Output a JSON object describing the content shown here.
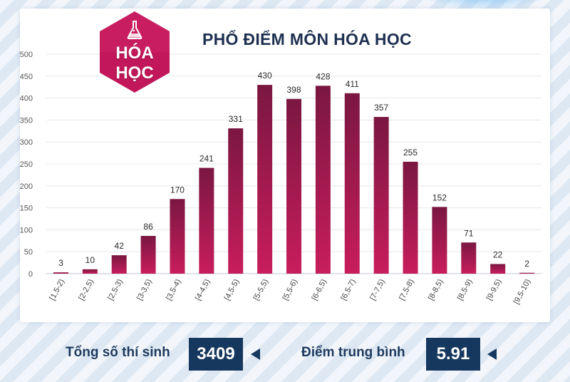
{
  "badge": {
    "line1": "HÓA",
    "line2": "HỌC"
  },
  "colors": {
    "bar_top": "#7a1740",
    "bar_bottom": "#c81d5c",
    "badge": "#c2185b",
    "navy": "#17385e"
  },
  "chart_data": {
    "type": "bar",
    "title": "PHỔ ĐIỂM MÔN HÓA HỌC",
    "categories": [
      "[1,5-2)",
      "[2-2,5)",
      "[2,5-3)",
      "[3-3,5)",
      "[3,5-4)",
      "[4-4,5)",
      "[4,5-5)",
      "[5-5,5)",
      "[5,5-6)",
      "[6-6,5)",
      "[6,5-7)",
      "[7-7,5)",
      "[7,5-8)",
      "[8-8,5)",
      "[8,5-9)",
      "[9-9,5)",
      "[9,5-10)"
    ],
    "values": [
      3,
      10,
      42,
      86,
      170,
      241,
      331,
      430,
      398,
      428,
      411,
      357,
      255,
      152,
      71,
      22,
      2
    ],
    "ylim": [
      0,
      500
    ],
    "yticks": [
      0,
      50,
      100,
      150,
      200,
      250,
      300,
      350,
      400,
      450,
      500
    ],
    "grid": true,
    "xlabel": "",
    "ylabel": ""
  },
  "footer": {
    "total_label": "Tổng số thí sinh",
    "total_value": "3409",
    "avg_label": "Điểm trung bình",
    "avg_value": "5.91"
  }
}
